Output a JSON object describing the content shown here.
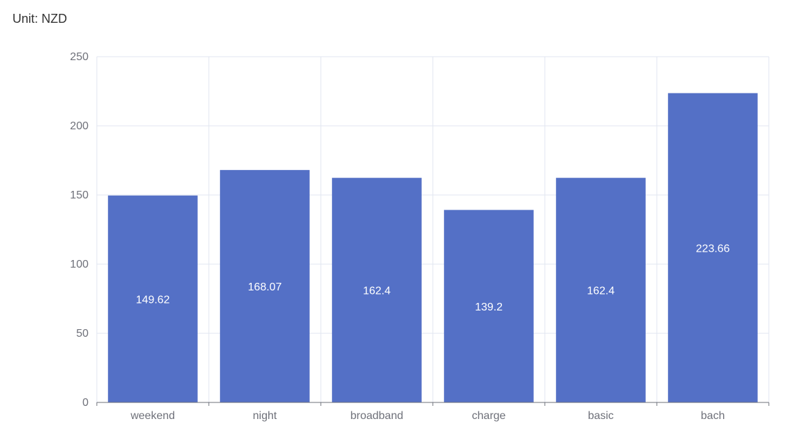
{
  "unit_label": "Unit: NZD",
  "chart_data": {
    "type": "bar",
    "title": "",
    "xlabel": "",
    "ylabel": "",
    "categories": [
      "weekend",
      "night",
      "broadband",
      "charge",
      "basic",
      "bach"
    ],
    "values": [
      149.62,
      168.07,
      162.4,
      139.2,
      162.4,
      223.66
    ],
    "data_labels": [
      "149.62",
      "168.07",
      "162.4",
      "139.2",
      "162.4",
      "223.66"
    ],
    "ylim": [
      0,
      250
    ],
    "yticks": [
      0,
      50,
      100,
      150,
      200,
      250
    ],
    "grid": true,
    "legend": "none",
    "colors": {
      "bar": "#5470c6",
      "grid": "#e0e6f1",
      "axis": "#6e7079",
      "label": "#ffffff"
    }
  }
}
